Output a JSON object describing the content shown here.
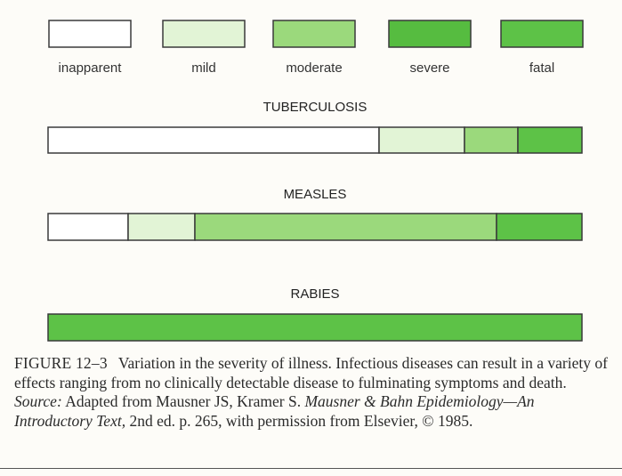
{
  "chart_data": {
    "type": "bar",
    "orientation": "horizontal",
    "stacked": true,
    "legend": {
      "placement": "top",
      "entries": [
        {
          "label": "inapparent",
          "color": "#ffffff"
        },
        {
          "label": "mild",
          "color": "#e2f4d6"
        },
        {
          "label": "moderate",
          "color": "#9bd97c"
        },
        {
          "label": "severe",
          "color": "#56bc40"
        },
        {
          "label": "fatal",
          "color": "#5dc247"
        }
      ]
    },
    "categories": [
      "TUBERCULOSIS",
      "MEASLES",
      "RABIES"
    ],
    "series": [
      {
        "name": "inapparent",
        "values": [
          62,
          15,
          0
        ]
      },
      {
        "name": "mild",
        "values": [
          16,
          12.5,
          0
        ]
      },
      {
        "name": "moderate",
        "values": [
          10,
          56.5,
          0
        ]
      },
      {
        "name": "severe",
        "values": [
          0,
          0,
          0
        ]
      },
      {
        "name": "fatal",
        "values": [
          12,
          16,
          100
        ]
      }
    ],
    "xlim": [
      0,
      100
    ],
    "grid": false,
    "axes_shown": false
  },
  "caption": {
    "figure_label": "FIGURE 12–3",
    "text_1": "Variation in the severity of illness. Infectious diseases can result in a variety of effects ranging from no clinically detectable disease to fulminating symptoms and death.",
    "source_label": "Source:",
    "text_2": "Adapted from Mausner JS, Kramer S.",
    "book_title": "Mausner & Bahn Epidemiology—An Introductory Text,",
    "text_3": "2nd ed. p. 265, with permission from Elsevier, © 1985."
  }
}
